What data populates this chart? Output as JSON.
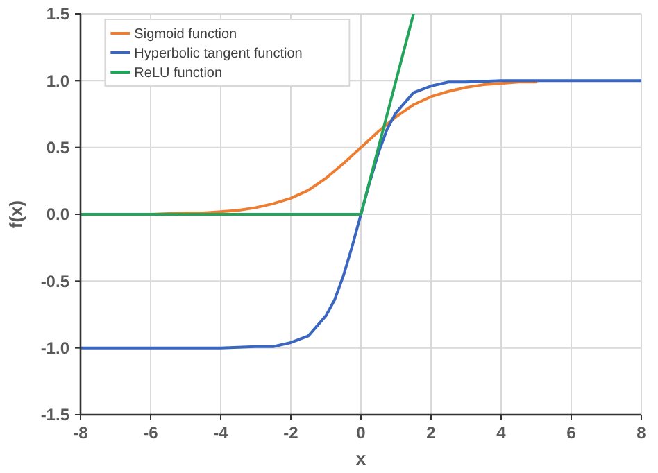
{
  "chart_data": {
    "type": "line",
    "xlabel": "x",
    "ylabel": "f(x)",
    "xlim": [
      -8,
      8
    ],
    "xticks": [
      -8,
      -6,
      -4,
      -2,
      0,
      2,
      4,
      6,
      8
    ],
    "ylim": [
      -1.5,
      1.5
    ],
    "yticks": [
      {
        "value": -1.5,
        "label": "-1.5"
      },
      {
        "value": -1,
        "label": "-1.0"
      },
      {
        "value": -0.5,
        "label": "-0.5"
      },
      {
        "value": 0,
        "label": "0.0"
      },
      {
        "value": 0.5,
        "label": "0.5"
      },
      {
        "value": 1,
        "label": "1.0"
      },
      {
        "value": 1.5,
        "label": "1.5"
      }
    ],
    "grid": true,
    "legend": "top left",
    "marker": "none",
    "line_style": "solid",
    "series": [
      {
        "name": "Sigmoid function",
        "color": "#ed7d31",
        "x": [
          -8,
          -7,
          -6,
          -5,
          -4.5,
          -4,
          -3.5,
          -3,
          -2.5,
          -2,
          -1.5,
          -1,
          -0.5,
          0,
          0.5,
          1,
          1.5,
          2,
          2.5,
          3,
          3.5,
          4,
          4.5,
          5
        ],
        "values": [
          0,
          0,
          0,
          0.01,
          0.01,
          0.02,
          0.03,
          0.05,
          0.08,
          0.12,
          0.18,
          0.27,
          0.38,
          0.5,
          0.62,
          0.73,
          0.82,
          0.88,
          0.92,
          0.95,
          0.97,
          0.98,
          0.99,
          0.99
        ]
      },
      {
        "name": "Hyperbolic tangent function",
        "color": "#3a66c0",
        "x": [
          -8,
          -5,
          -4,
          -3,
          -2.5,
          -2,
          -1.5,
          -1,
          -0.75,
          -0.5,
          -0.25,
          0,
          0.25,
          0.5,
          0.75,
          1,
          1.5,
          2,
          2.5,
          3,
          4,
          5,
          8
        ],
        "values": [
          -1,
          -1,
          -1,
          -0.99,
          -0.99,
          -0.96,
          -0.91,
          -0.76,
          -0.64,
          -0.46,
          -0.24,
          0,
          0.24,
          0.46,
          0.64,
          0.76,
          0.91,
          0.96,
          0.99,
          0.99,
          1,
          1,
          1
        ]
      },
      {
        "name": "ReLU function",
        "color": "#22a55a",
        "x": [
          -8,
          0,
          1.5
        ],
        "values": [
          0,
          0,
          1.5
        ]
      }
    ]
  }
}
